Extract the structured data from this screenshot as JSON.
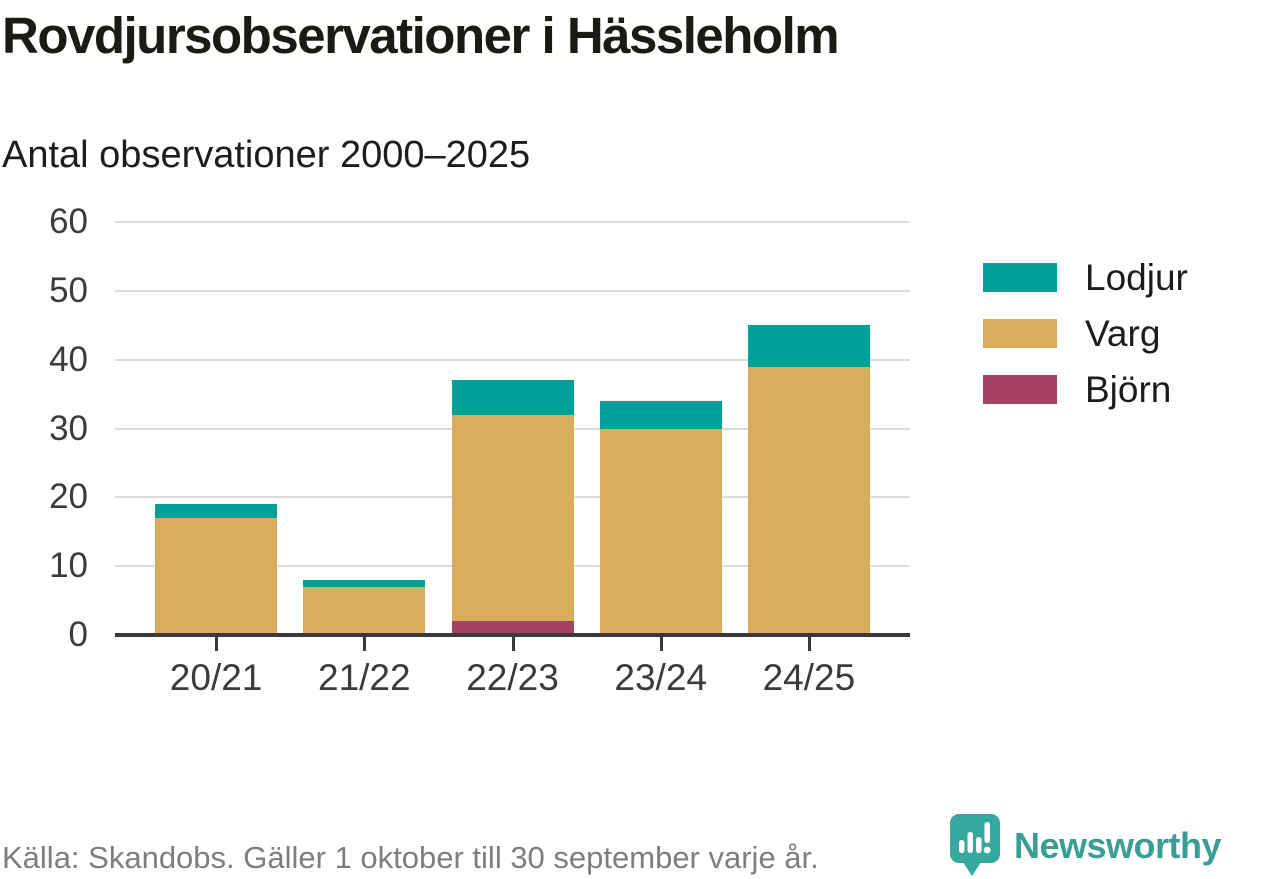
{
  "header": {
    "title": "Rovdjursobservationer i Hässleholm",
    "subtitle": "Antal observationer 2000–2025"
  },
  "chart_data": {
    "type": "bar",
    "stacked": true,
    "title": "Rovdjursobservationer i Hässleholm",
    "subtitle": "Antal observationer 2000–2025",
    "categories": [
      "20/21",
      "21/22",
      "22/23",
      "23/24",
      "24/25"
    ],
    "series": [
      {
        "name": "Lodjur",
        "color": "#00a099",
        "values": [
          2,
          1,
          5,
          4,
          6
        ]
      },
      {
        "name": "Varg",
        "color": "#d9ad5c",
        "values": [
          17,
          7,
          30,
          30,
          39
        ]
      },
      {
        "name": "Björn",
        "color": "#a34262",
        "values": [
          0,
          0,
          2,
          0,
          0
        ]
      }
    ],
    "stack_order_bottom_to_top": [
      "Björn",
      "Varg",
      "Lodjur"
    ],
    "totals": [
      19,
      8,
      37,
      34,
      45
    ],
    "xlabel": "",
    "ylabel": "",
    "ylim": [
      0,
      60
    ],
    "yticks": [
      0,
      10,
      20,
      30,
      40,
      50,
      60
    ],
    "grid": true,
    "legend_position": "right"
  },
  "footer": {
    "source": "Källa: Skandobs. Gäller 1 oktober till 30 september varje år.",
    "brand": "Newsworthy"
  },
  "colors": {
    "lodjur": "#00a099",
    "varg": "#d9ad5c",
    "bjorn": "#a34262",
    "gridline": "#dcdcdc",
    "axis": "#3a3a3a",
    "text_dark": "#1b1b16",
    "text_axis": "#3b3b3b",
    "text_muted": "#7e7e7e",
    "brand_teal": "#3a9e97"
  }
}
